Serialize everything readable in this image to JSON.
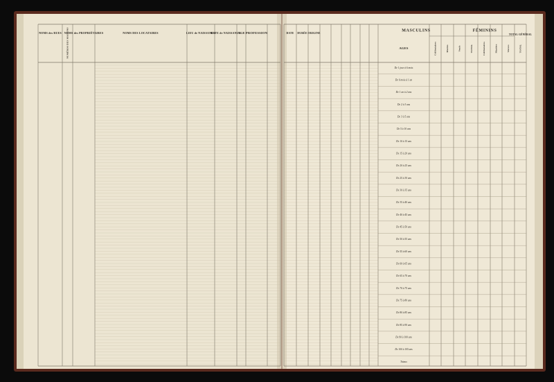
{
  "left_page": {
    "headers": [
      "NOMS des RUES",
      "NUMÉROS DES MAISONS",
      "NOMS des PROPRIÉTAIRES",
      "NOMS DES LOCATAIRES",
      "LIEU de NAISSANCE",
      "DATE de NAISSANCE",
      "AGE",
      "PROFESSION"
    ]
  },
  "right_page": {
    "headers": [
      "DATE",
      "DURÉE",
      "ORIGINE"
    ],
    "masculins": "MASCULINS",
    "feminins": "FÉMININS",
    "ages_header": "AGES",
    "total_general": "TOTAL GÉNÉRAL",
    "masculins_sub": [
      "Célibataires",
      "Mariés",
      "Veufs",
      "TOTAL"
    ],
    "feminins_sub": [
      "Célibataires",
      "Mariées",
      "Veuves",
      "TOTAL"
    ],
    "age_rows": [
      "De 1 jour à 6 mois",
      "De 6 mois à 1 an",
      "De 1 an à 2 ans",
      "De 2 à 3 ans",
      "De 3 à 5 ans",
      "De 5 à 10 ans",
      "De 10 à 15 ans",
      "De 15 à 20 ans",
      "De 20 à 25 ans",
      "De 25 à 30 ans",
      "De 30 à 35 ans",
      "De 35 à 40 ans",
      "De 40 à 45 ans",
      "De 45 à 50 ans",
      "De 50 à 55 ans",
      "De 55 à 60 ans",
      "De 60 à 65 ans",
      "De 65 à 70 ans",
      "De 70 à 75 ans",
      "De 75 à 80 ans",
      "De 80 à 85 ans",
      "De 85 à 90 ans",
      "De 90 à 100 ans",
      "De 100 à 105 ans",
      "Totaux"
    ]
  }
}
